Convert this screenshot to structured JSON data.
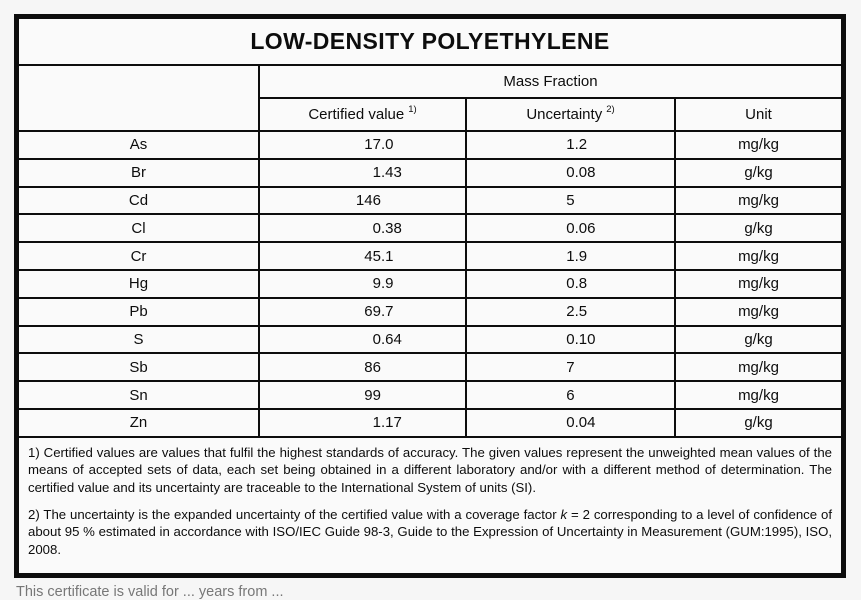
{
  "certificate": {
    "title": "LOW-DENSITY POLYETHYLENE",
    "header": {
      "group": "Mass Fraction",
      "columns": [
        {
          "label": "Certified value",
          "sup": "1)"
        },
        {
          "label": "Uncertainty",
          "sup": "2)"
        },
        {
          "label": "Unit",
          "sup": ""
        }
      ]
    },
    "rows": [
      {
        "element": "As",
        "certified_value": "17.0",
        "uncertainty": "1.2",
        "unit": "mg/kg"
      },
      {
        "element": "Br",
        "certified_value": "1.43",
        "uncertainty": "0.08",
        "unit": "g/kg"
      },
      {
        "element": "Cd",
        "certified_value": "146",
        "uncertainty": "5",
        "unit": "mg/kg"
      },
      {
        "element": "Cl",
        "certified_value": "0.38",
        "uncertainty": "0.06",
        "unit": "g/kg"
      },
      {
        "element": "Cr",
        "certified_value": "45.1",
        "uncertainty": "1.9",
        "unit": "mg/kg"
      },
      {
        "element": "Hg",
        "certified_value": "9.9",
        "uncertainty": "0.8",
        "unit": "mg/kg"
      },
      {
        "element": "Pb",
        "certified_value": "69.7",
        "uncertainty": "2.5",
        "unit": "mg/kg"
      },
      {
        "element": "S",
        "certified_value": "0.64",
        "uncertainty": "0.10",
        "unit": "g/kg"
      },
      {
        "element": "Sb",
        "certified_value": "86",
        "uncertainty": "7",
        "unit": "mg/kg"
      },
      {
        "element": "Sn",
        "certified_value": "99",
        "uncertainty": "6",
        "unit": "mg/kg"
      },
      {
        "element": "Zn",
        "certified_value": "1.17",
        "uncertainty": "0.04",
        "unit": "g/kg"
      }
    ],
    "footnote_1": "1) Certified values are values that fulfil the highest standards of accuracy. The given values represent the unweighted mean values of the means of accepted sets of data, each set being obtained in a different laboratory and/or with a different method of determination. The certified value and its uncertainty are traceable to the International System of units (SI).",
    "footnote_2": {
      "pre": "2) The uncertainty is the expanded uncertainty of the certified value with a coverage factor ",
      "italic": "k",
      "post": " = 2 corresponding to a level of confidence of about 95 % estimated in accordance with ISO/IEC Guide 98-3, Guide to the Expression of Uncertainty in Measurement (GUM:1995), ISO, 2008."
    }
  },
  "page": {
    "bottom_note": "This certificate is valid for ... years from ..."
  }
}
